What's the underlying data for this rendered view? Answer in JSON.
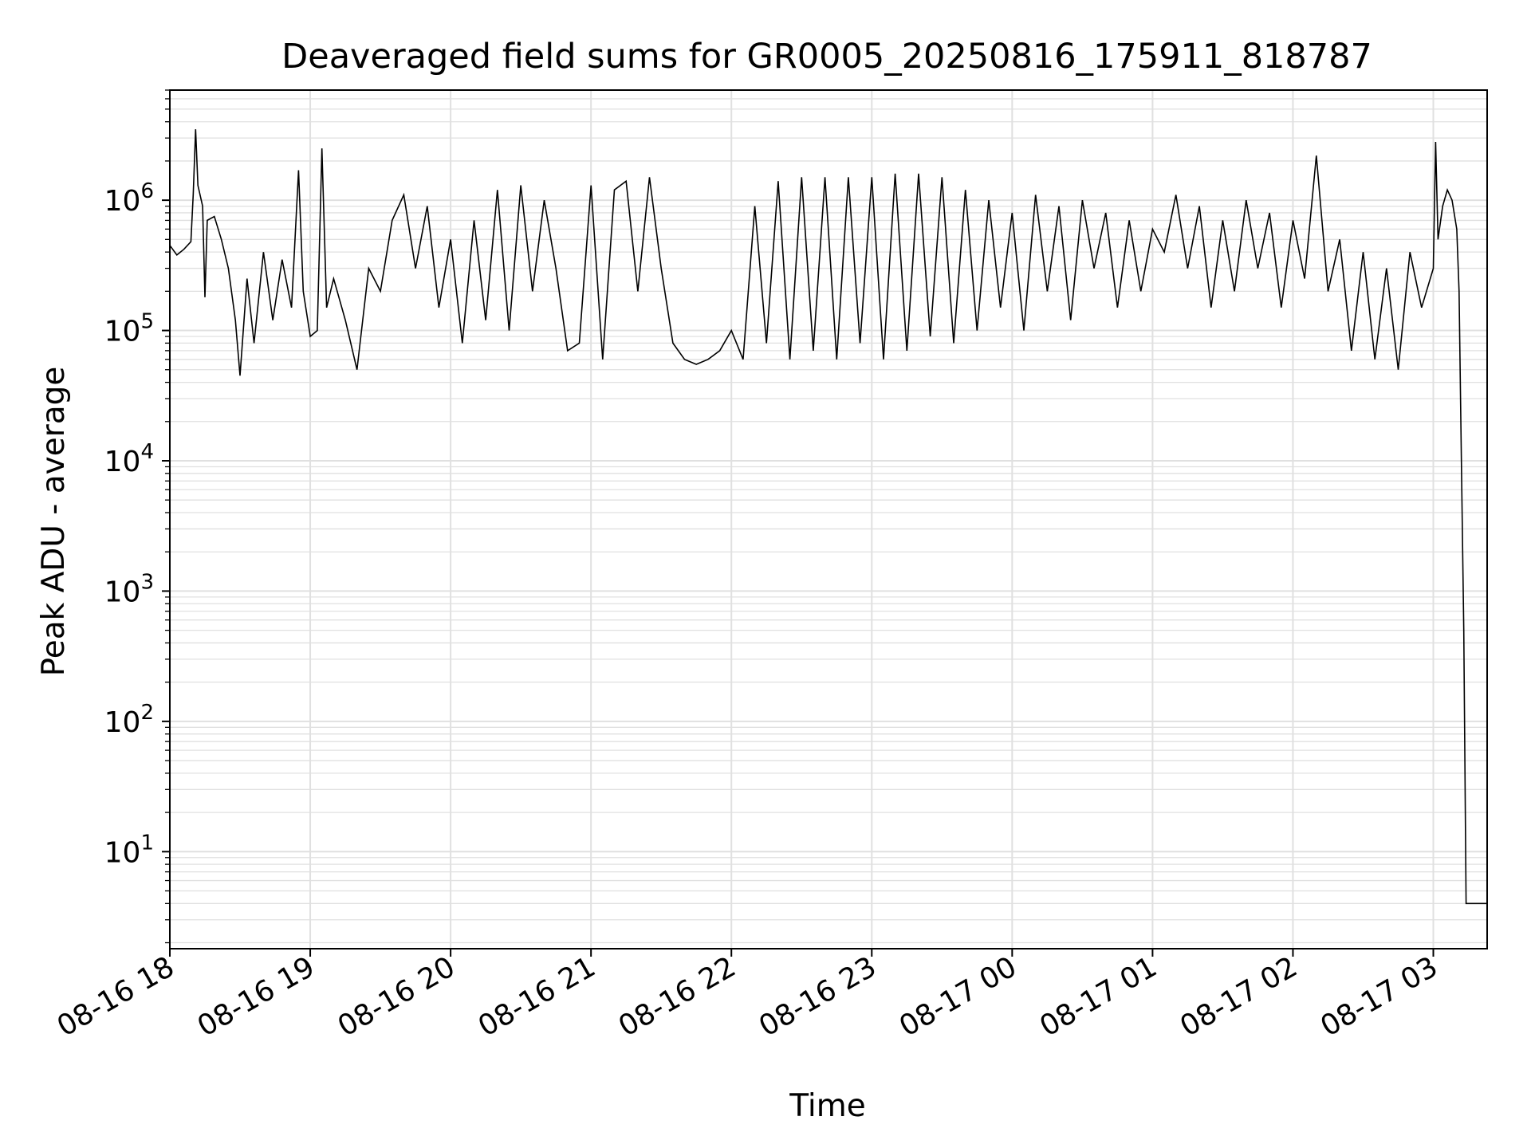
{
  "chart_data": {
    "type": "line",
    "title": "Deaveraged field sums for GR0005_20250816_175911_818787",
    "xlabel": "Time",
    "ylabel": "Peak ADU - average",
    "y_scale": "log",
    "ylim": [
      1.8,
      7000000
    ],
    "xlim": [
      "08-16 18:00",
      "08-17 03:23"
    ],
    "grid": true,
    "line_color": "#000000",
    "grid_color": "#e0e0e0",
    "x_ticks": [
      {
        "label": "08-16 18",
        "time": "08-16 18:00"
      },
      {
        "label": "08-16 19",
        "time": "08-16 19:00"
      },
      {
        "label": "08-16 20",
        "time": "08-16 20:00"
      },
      {
        "label": "08-16 21",
        "time": "08-16 21:00"
      },
      {
        "label": "08-16 22",
        "time": "08-16 22:00"
      },
      {
        "label": "08-16 23",
        "time": "08-16 23:00"
      },
      {
        "label": "08-17 00",
        "time": "08-17 00:00"
      },
      {
        "label": "08-17 01",
        "time": "08-17 01:00"
      },
      {
        "label": "08-17 02",
        "time": "08-17 02:00"
      },
      {
        "label": "08-17 03",
        "time": "08-17 03:00"
      }
    ],
    "y_ticks": [
      {
        "base": "10",
        "exp": "1",
        "value": 10
      },
      {
        "base": "10",
        "exp": "2",
        "value": 100
      },
      {
        "base": "10",
        "exp": "3",
        "value": 1000
      },
      {
        "base": "10",
        "exp": "4",
        "value": 10000
      },
      {
        "base": "10",
        "exp": "5",
        "value": 100000
      },
      {
        "base": "10",
        "exp": "6",
        "value": 1000000
      }
    ],
    "series": [
      {
        "points": [
          [
            "08-16 18:00",
            450000
          ],
          [
            "08-16 18:03",
            380000
          ],
          [
            "08-16 18:06",
            420000
          ],
          [
            "08-16 18:09",
            480000
          ],
          [
            "08-16 18:10",
            1100000
          ],
          [
            "08-16 18:11",
            3500000
          ],
          [
            "08-16 18:12",
            1300000
          ],
          [
            "08-16 18:14",
            900000
          ],
          [
            "08-16 18:15",
            180000
          ],
          [
            "08-16 18:16",
            700000
          ],
          [
            "08-16 18:19",
            750000
          ],
          [
            "08-16 18:22",
            500000
          ],
          [
            "08-16 18:25",
            300000
          ],
          [
            "08-16 18:28",
            120000
          ],
          [
            "08-16 18:30",
            45000
          ],
          [
            "08-16 18:33",
            250000
          ],
          [
            "08-16 18:36",
            80000
          ],
          [
            "08-16 18:40",
            400000
          ],
          [
            "08-16 18:44",
            120000
          ],
          [
            "08-16 18:48",
            350000
          ],
          [
            "08-16 18:52",
            150000
          ],
          [
            "08-16 18:55",
            1700000
          ],
          [
            "08-16 18:57",
            200000
          ],
          [
            "08-16 19:00",
            90000
          ],
          [
            "08-16 19:03",
            100000
          ],
          [
            "08-16 19:05",
            2500000
          ],
          [
            "08-16 19:07",
            150000
          ],
          [
            "08-16 19:10",
            250000
          ],
          [
            "08-16 19:15",
            120000
          ],
          [
            "08-16 19:20",
            50000
          ],
          [
            "08-16 19:25",
            300000
          ],
          [
            "08-16 19:30",
            200000
          ],
          [
            "08-16 19:35",
            700000
          ],
          [
            "08-16 19:40",
            1100000
          ],
          [
            "08-16 19:45",
            300000
          ],
          [
            "08-16 19:50",
            900000
          ],
          [
            "08-16 19:55",
            150000
          ],
          [
            "08-16 20:00",
            500000
          ],
          [
            "08-16 20:05",
            80000
          ],
          [
            "08-16 20:10",
            700000
          ],
          [
            "08-16 20:15",
            120000
          ],
          [
            "08-16 20:20",
            1200000
          ],
          [
            "08-16 20:25",
            100000
          ],
          [
            "08-16 20:30",
            1300000
          ],
          [
            "08-16 20:35",
            200000
          ],
          [
            "08-16 20:40",
            1000000
          ],
          [
            "08-16 20:45",
            300000
          ],
          [
            "08-16 20:50",
            70000
          ],
          [
            "08-16 20:55",
            80000
          ],
          [
            "08-16 21:00",
            1300000
          ],
          [
            "08-16 21:05",
            60000
          ],
          [
            "08-16 21:10",
            1200000
          ],
          [
            "08-16 21:15",
            1400000
          ],
          [
            "08-16 21:20",
            200000
          ],
          [
            "08-16 21:25",
            1500000
          ],
          [
            "08-16 21:30",
            300000
          ],
          [
            "08-16 21:35",
            80000
          ],
          [
            "08-16 21:40",
            60000
          ],
          [
            "08-16 21:45",
            55000
          ],
          [
            "08-16 21:50",
            60000
          ],
          [
            "08-16 21:55",
            70000
          ],
          [
            "08-16 22:00",
            100000
          ],
          [
            "08-16 22:05",
            60000
          ],
          [
            "08-16 22:10",
            900000
          ],
          [
            "08-16 22:15",
            80000
          ],
          [
            "08-16 22:20",
            1400000
          ],
          [
            "08-16 22:25",
            60000
          ],
          [
            "08-16 22:30",
            1500000
          ],
          [
            "08-16 22:35",
            70000
          ],
          [
            "08-16 22:40",
            1500000
          ],
          [
            "08-16 22:45",
            60000
          ],
          [
            "08-16 22:50",
            1500000
          ],
          [
            "08-16 22:55",
            80000
          ],
          [
            "08-16 23:00",
            1500000
          ],
          [
            "08-16 23:05",
            60000
          ],
          [
            "08-16 23:10",
            1600000
          ],
          [
            "08-16 23:15",
            70000
          ],
          [
            "08-16 23:20",
            1600000
          ],
          [
            "08-16 23:25",
            90000
          ],
          [
            "08-16 23:30",
            1500000
          ],
          [
            "08-16 23:35",
            80000
          ],
          [
            "08-16 23:40",
            1200000
          ],
          [
            "08-16 23:45",
            100000
          ],
          [
            "08-16 23:50",
            1000000
          ],
          [
            "08-16 23:55",
            150000
          ],
          [
            "08-17 00:00",
            800000
          ],
          [
            "08-17 00:05",
            100000
          ],
          [
            "08-17 00:10",
            1100000
          ],
          [
            "08-17 00:15",
            200000
          ],
          [
            "08-17 00:20",
            900000
          ],
          [
            "08-17 00:25",
            120000
          ],
          [
            "08-17 00:30",
            1000000
          ],
          [
            "08-17 00:35",
            300000
          ],
          [
            "08-17 00:40",
            800000
          ],
          [
            "08-17 00:45",
            150000
          ],
          [
            "08-17 00:50",
            700000
          ],
          [
            "08-17 00:55",
            200000
          ],
          [
            "08-17 01:00",
            600000
          ],
          [
            "08-17 01:05",
            400000
          ],
          [
            "08-17 01:10",
            1100000
          ],
          [
            "08-17 01:15",
            300000
          ],
          [
            "08-17 01:20",
            900000
          ],
          [
            "08-17 01:25",
            150000
          ],
          [
            "08-17 01:30",
            700000
          ],
          [
            "08-17 01:35",
            200000
          ],
          [
            "08-17 01:40",
            1000000
          ],
          [
            "08-17 01:45",
            300000
          ],
          [
            "08-17 01:50",
            800000
          ],
          [
            "08-17 01:55",
            150000
          ],
          [
            "08-17 02:00",
            700000
          ],
          [
            "08-17 02:05",
            250000
          ],
          [
            "08-17 02:10",
            2200000
          ],
          [
            "08-17 02:15",
            200000
          ],
          [
            "08-17 02:20",
            500000
          ],
          [
            "08-17 02:25",
            70000
          ],
          [
            "08-17 02:30",
            400000
          ],
          [
            "08-17 02:35",
            60000
          ],
          [
            "08-17 02:40",
            300000
          ],
          [
            "08-17 02:45",
            50000
          ],
          [
            "08-17 02:50",
            400000
          ],
          [
            "08-17 02:55",
            150000
          ],
          [
            "08-17 03:00",
            300000
          ],
          [
            "08-17 03:01",
            2800000
          ],
          [
            "08-17 03:02",
            500000
          ],
          [
            "08-17 03:04",
            900000
          ],
          [
            "08-17 03:06",
            1200000
          ],
          [
            "08-17 03:08",
            1000000
          ],
          [
            "08-17 03:10",
            600000
          ],
          [
            "08-17 03:11",
            200000
          ],
          [
            "08-17 03:12",
            10000
          ],
          [
            "08-17 03:13",
            500
          ],
          [
            "08-17 03:14",
            4
          ],
          [
            "08-17 03:16",
            4
          ],
          [
            "08-17 03:18",
            4
          ],
          [
            "08-17 03:20",
            4
          ],
          [
            "08-17 03:23",
            4
          ]
        ]
      }
    ]
  }
}
